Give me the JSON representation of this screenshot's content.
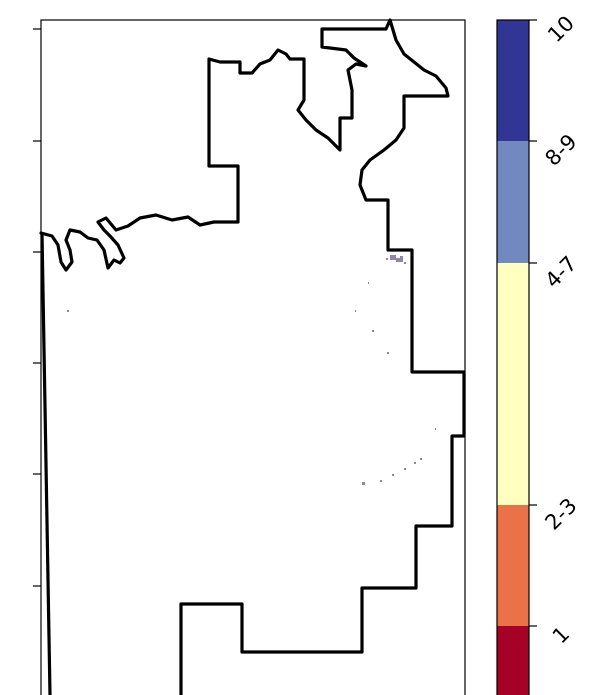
{
  "legend": {
    "labels": [
      "10",
      "8-9",
      "4-7",
      "2-3",
      "1"
    ],
    "colors": {
      "class_10": "#313695",
      "class_8_9": "#7189bf",
      "class_4_7": "#ffffc0",
      "class_2_3": "#eb7148",
      "class_1": "#a50026"
    }
  },
  "map": {
    "background": "#ffffff",
    "boundary_color": "#000000",
    "speckle_color": "#7a6e9e"
  }
}
